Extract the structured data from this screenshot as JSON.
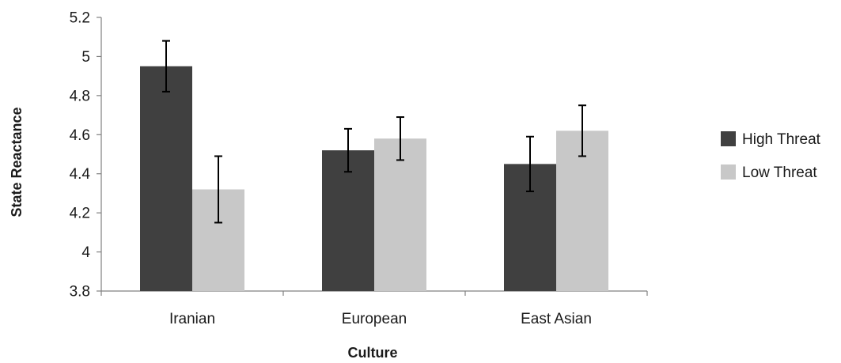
{
  "chart_data": {
    "type": "bar",
    "title": "",
    "xlabel": "Culture",
    "ylabel": "State Reactance",
    "categories": [
      "Iranian",
      "European",
      "East Asian"
    ],
    "ylim": [
      3.8,
      5.2
    ],
    "yticks": [
      "3.8",
      "4",
      "4.2",
      "4.4",
      "4.6",
      "4.8",
      "5",
      "5.2"
    ],
    "grid": false,
    "legend_position": "right",
    "series": [
      {
        "name": "High Threat",
        "color": "#404040",
        "values": [
          4.95,
          4.52,
          4.45
        ],
        "error": [
          0.13,
          0.11,
          0.14
        ]
      },
      {
        "name": "Low Threat",
        "color": "#c8c8c8",
        "values": [
          4.32,
          4.58,
          4.62
        ],
        "error": [
          0.17,
          0.11,
          0.13
        ]
      }
    ]
  }
}
